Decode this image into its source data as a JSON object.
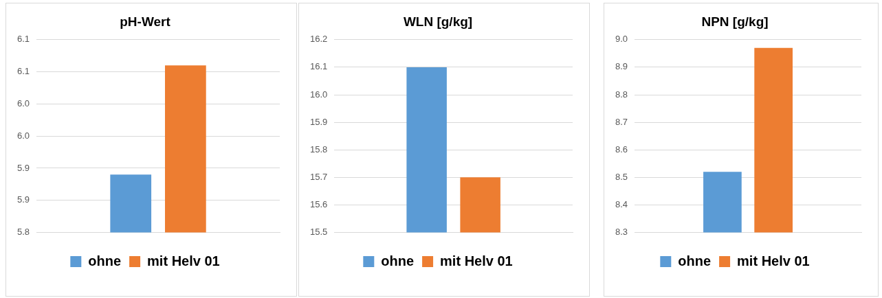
{
  "chart_data": [
    {
      "type": "bar",
      "title": "pH-Wert",
      "categories": [
        null
      ],
      "series": [
        {
          "name": "ohne",
          "color": "#5b9bd5",
          "values": [
            5.89
          ]
        },
        {
          "name": "mit Helv 01",
          "color": "#ed7d31",
          "values": [
            6.06
          ]
        }
      ],
      "ylim": [
        5.8,
        6.1
      ],
      "yticks": [
        {
          "value": 5.8,
          "label": "5.8"
        },
        {
          "value": 5.85,
          "label": "5.9"
        },
        {
          "value": 5.9,
          "label": "5.9"
        },
        {
          "value": 5.95,
          "label": "6.0"
        },
        {
          "value": 6.0,
          "label": "6.0"
        },
        {
          "value": 6.05,
          "label": "6.1"
        },
        {
          "value": 6.1,
          "label": "6.1"
        }
      ],
      "grid": "y",
      "legend": "bottom"
    },
    {
      "type": "bar",
      "title": "WLN [g/kg]",
      "categories": [
        null
      ],
      "series": [
        {
          "name": "ohne",
          "color": "#5b9bd5",
          "values": [
            16.1
          ]
        },
        {
          "name": "mit Helv 01",
          "color": "#ed7d31",
          "values": [
            15.7
          ]
        }
      ],
      "ylim": [
        15.5,
        16.2
      ],
      "yticks": [
        15.5,
        15.6,
        15.7,
        15.8,
        15.9,
        {
          "value": 16,
          "label": "16.0"
        },
        16.1,
        16.2
      ],
      "grid": "y",
      "legend": "bottom"
    },
    {
      "type": "bar",
      "title": "NPN [g/kg]",
      "categories": [
        null
      ],
      "series": [
        {
          "name": "ohne",
          "color": "#5b9bd5",
          "values": [
            8.52
          ]
        },
        {
          "name": "mit Helv 01",
          "color": "#ed7d31",
          "values": [
            8.97
          ]
        }
      ],
      "ylim": [
        8.3,
        9.0
      ],
      "yticks": [
        8.3,
        8.4,
        8.5,
        8.6,
        8.7,
        8.8,
        8.9,
        {
          "value": 9,
          "label": "9.0"
        }
      ],
      "grid": "y",
      "legend": "bottom"
    }
  ]
}
